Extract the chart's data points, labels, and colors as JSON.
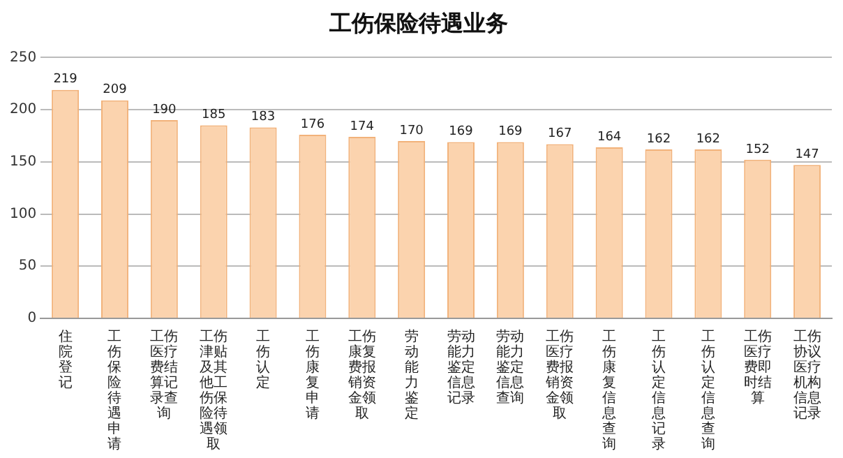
{
  "chart_data": {
    "type": "bar",
    "title": "工伤保险待遇业务",
    "categories": [
      "住院登记",
      "工伤保险待遇申请",
      "工伤医疗费结算记录查询",
      "工伤津贴及其他工伤保险待遇领取",
      "工伤认定",
      "工伤康复申请",
      "工伤康复费报销资金领取",
      "劳动能力鉴定",
      "劳动能力鉴定信息记录",
      "劳动能力鉴定信息查询",
      "工伤医疗费报销资金领取",
      "工伤康复信息查询",
      "工伤认定信息记录",
      "工伤认定信息查询",
      "工伤医疗费即时结算",
      "工伤协议医疗机构信息记录"
    ],
    "values": [
      219,
      209,
      190,
      185,
      183,
      176,
      174,
      170,
      169,
      169,
      167,
      164,
      162,
      162,
      152,
      147
    ],
    "color": "#fbd3ae",
    "ylim": [
      0,
      250
    ],
    "yticks": [
      0,
      50,
      100,
      150,
      200,
      250
    ],
    "grid": "y",
    "data_labels": true,
    "legend": false
  }
}
